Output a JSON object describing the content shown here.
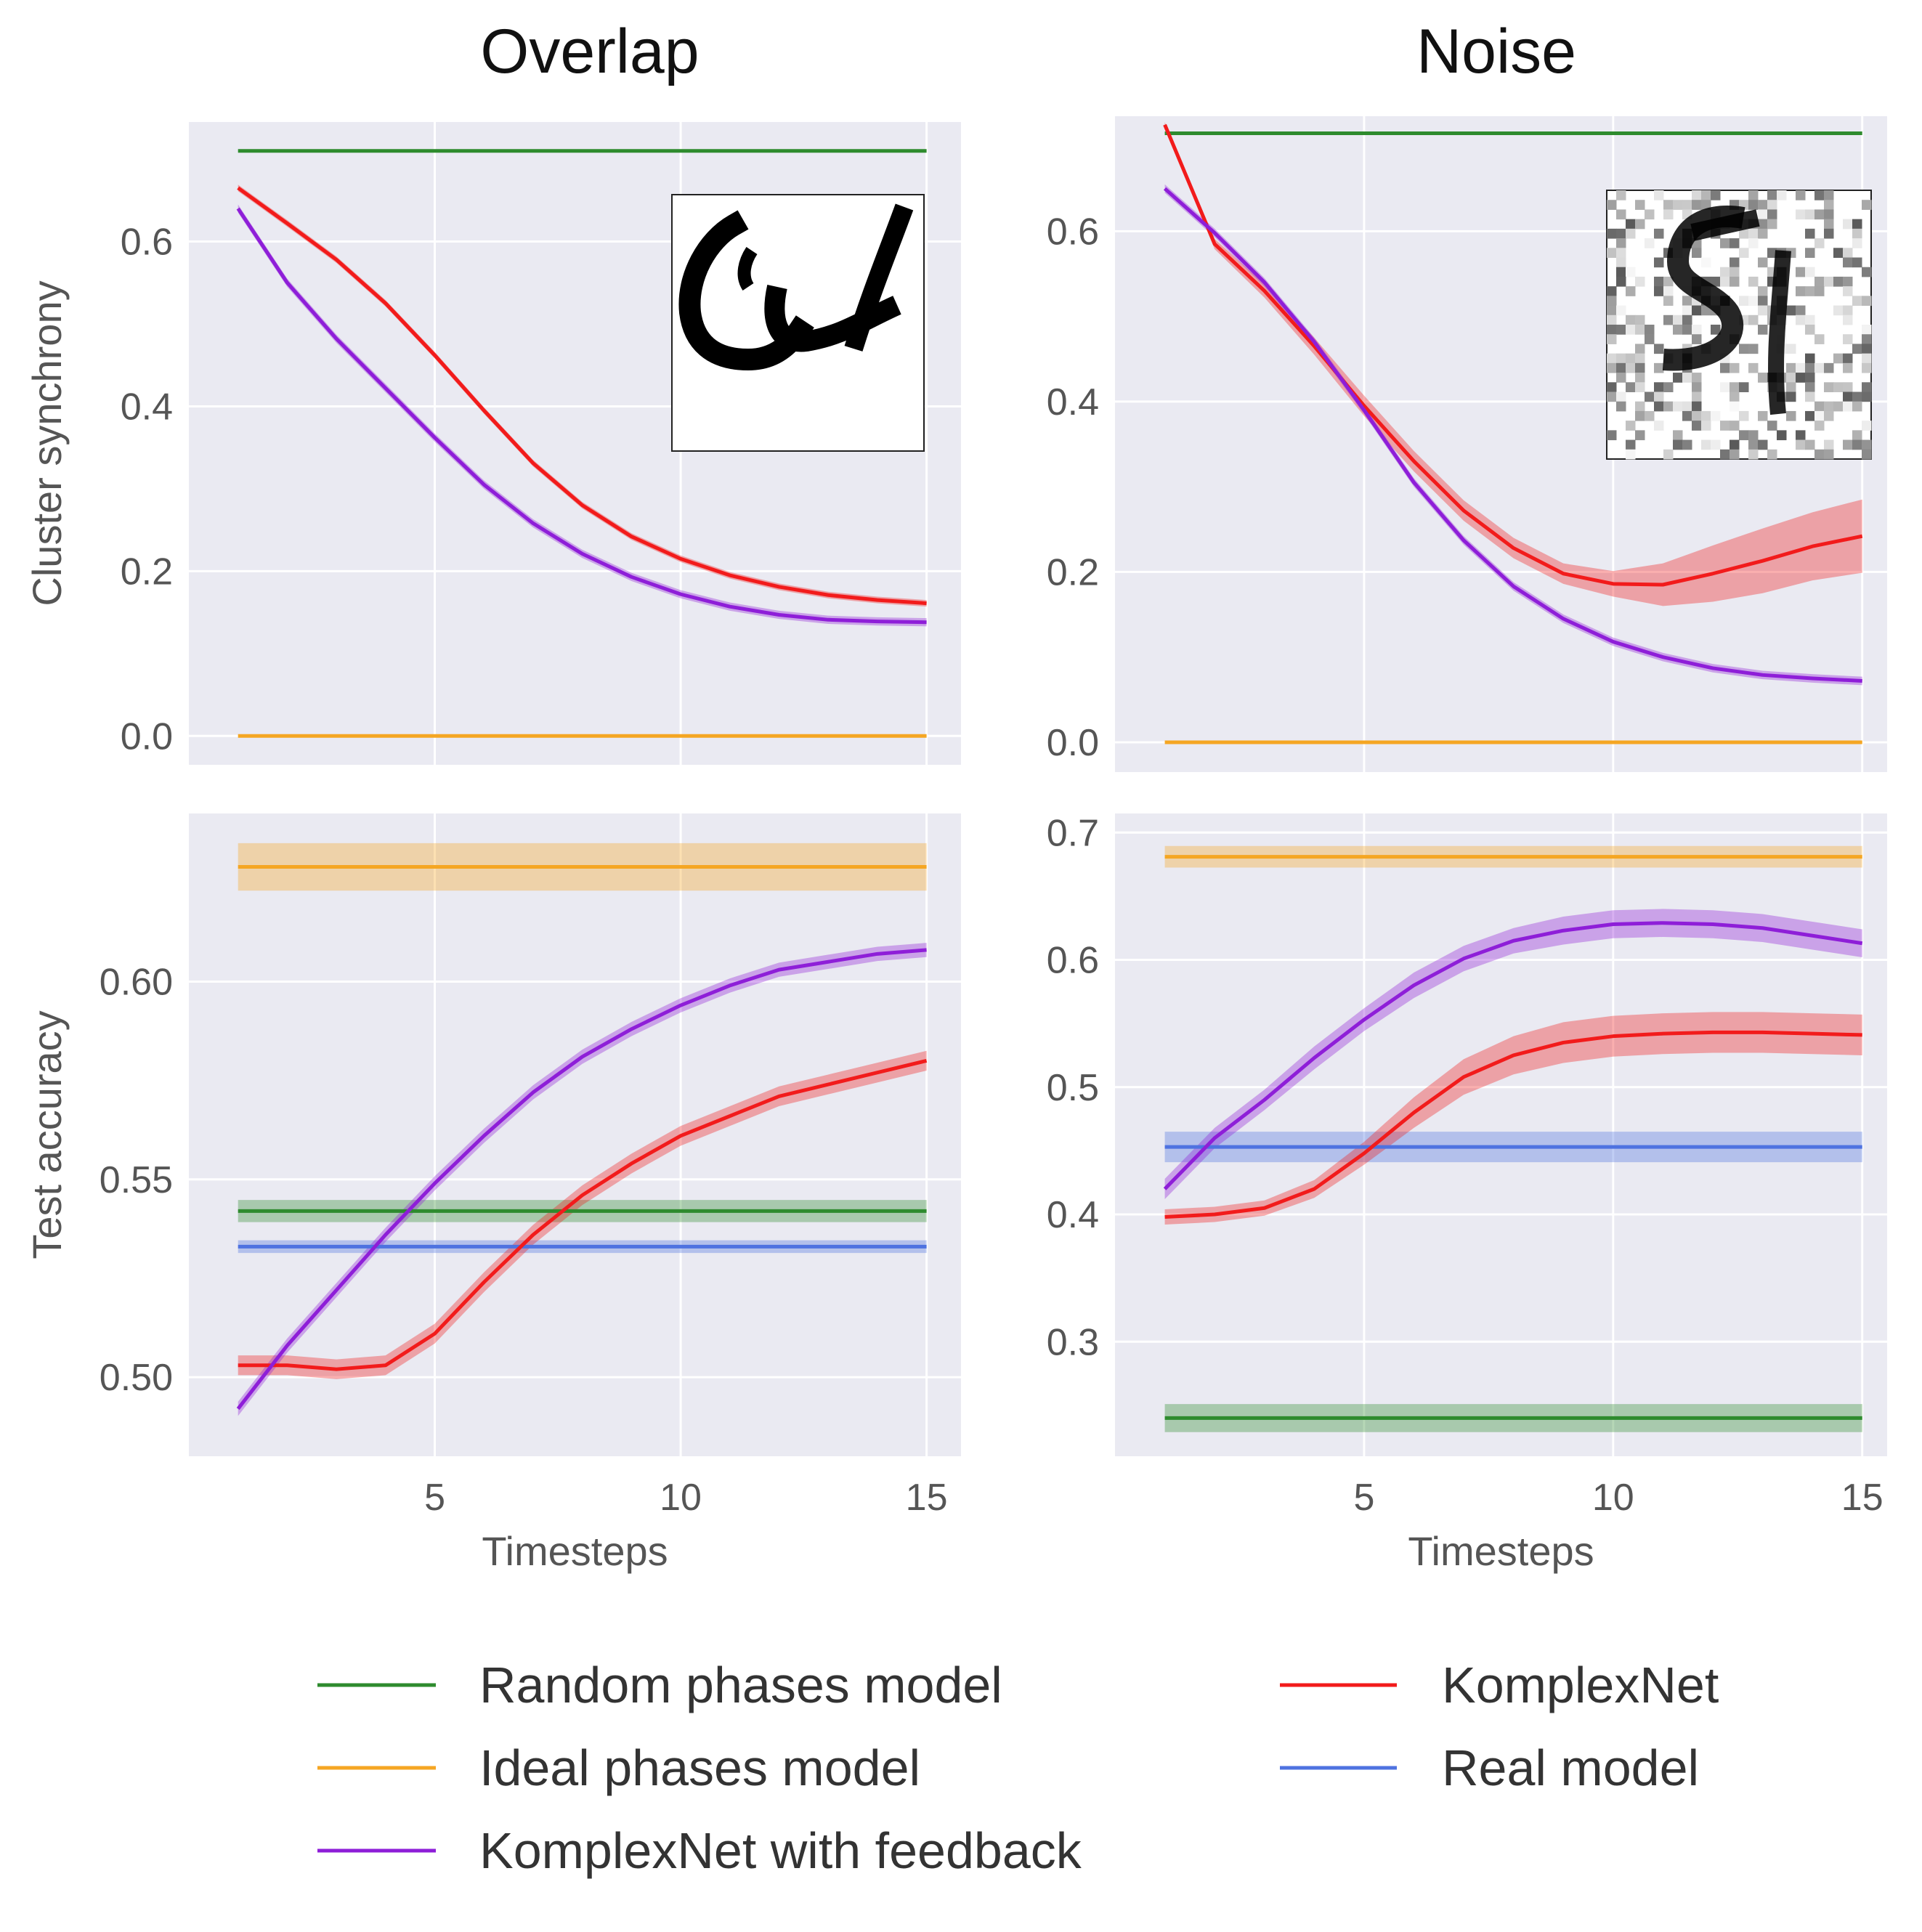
{
  "legend": [
    {
      "key": "random",
      "label": "Random phases model",
      "color": "#2E8B2E"
    },
    {
      "key": "ideal",
      "label": "Ideal phases model",
      "color": "#F5A623"
    },
    {
      "key": "feedback",
      "label": "KomplexNet with feedback",
      "color": "#8E1ED8"
    },
    {
      "key": "komplex",
      "label": "KomplexNet",
      "color": "#F21B1B"
    },
    {
      "key": "real",
      "label": "Real model",
      "color": "#4E72E0"
    }
  ],
  "chart_data": [
    {
      "id": "overlap-sync",
      "type": "line",
      "column_title": "Overlap",
      "ylabel": "Cluster synchrony",
      "xlabel": "",
      "xlim": [
        0,
        15.7
      ],
      "ylim": [
        -0.035,
        0.745
      ],
      "xticks": [
        5,
        10,
        15
      ],
      "xtick_labels": [
        "",
        "",
        ""
      ],
      "yticks": [
        0.0,
        0.2,
        0.4,
        0.6
      ],
      "ytick_labels": [
        "0.0",
        "0.2",
        "0.4",
        "0.6"
      ],
      "grid": true,
      "inset": "overlap-digits",
      "series": [
        {
          "key": "random",
          "x": [
            1,
            15
          ],
          "y": [
            0.71,
            0.71
          ],
          "band": 0.0
        },
        {
          "key": "ideal",
          "x": [
            1,
            15
          ],
          "y": [
            0.0,
            0.0
          ],
          "band": 0.0
        },
        {
          "key": "komplex",
          "x": [
            1,
            2,
            3,
            4,
            5,
            6,
            7,
            8,
            9,
            10,
            11,
            12,
            13,
            14,
            15
          ],
          "y": [
            0.665,
            0.622,
            0.578,
            0.525,
            0.462,
            0.395,
            0.331,
            0.28,
            0.242,
            0.215,
            0.195,
            0.181,
            0.171,
            0.165,
            0.161
          ],
          "band": 0.004
        },
        {
          "key": "feedback",
          "x": [
            1,
            2,
            3,
            4,
            5,
            6,
            7,
            8,
            9,
            10,
            11,
            12,
            13,
            14,
            15
          ],
          "y": [
            0.64,
            0.55,
            0.482,
            0.422,
            0.362,
            0.305,
            0.258,
            0.221,
            0.193,
            0.172,
            0.157,
            0.147,
            0.141,
            0.139,
            0.138
          ],
          "band": 0.005
        }
      ]
    },
    {
      "id": "noise-sync",
      "type": "line",
      "column_title": "Noise",
      "ylabel": "",
      "xlabel": "",
      "xlim": [
        0,
        15.5
      ],
      "ylim": [
        -0.035,
        0.735
      ],
      "xticks": [
        5,
        10,
        15
      ],
      "xtick_labels": [
        "",
        "",
        ""
      ],
      "yticks": [
        0.0,
        0.2,
        0.4,
        0.6
      ],
      "ytick_labels": [
        "0.0",
        "0.2",
        "0.4",
        "0.6"
      ],
      "grid": true,
      "inset": "noise-digits",
      "series": [
        {
          "key": "random",
          "x": [
            1,
            15
          ],
          "y": [
            0.715,
            0.715
          ],
          "band": 0.0
        },
        {
          "key": "ideal",
          "x": [
            1,
            15
          ],
          "y": [
            0.0,
            0.0
          ],
          "band": 0.0
        },
        {
          "key": "komplex",
          "x": [
            1,
            2,
            3,
            4,
            5,
            6,
            7,
            8,
            9,
            10,
            11,
            12,
            13,
            14,
            15
          ],
          "y": [
            0.725,
            0.585,
            0.53,
            0.465,
            0.395,
            0.33,
            0.272,
            0.228,
            0.198,
            0.186,
            0.185,
            0.198,
            0.213,
            0.23,
            0.242
          ],
          "band": [
            0.003,
            0.006,
            0.008,
            0.01,
            0.012,
            0.012,
            0.012,
            0.012,
            0.012,
            0.015,
            0.025,
            0.033,
            0.038,
            0.04,
            0.043
          ]
        },
        {
          "key": "feedback",
          "x": [
            1,
            2,
            3,
            4,
            5,
            6,
            7,
            8,
            9,
            10,
            11,
            12,
            13,
            14,
            15
          ],
          "y": [
            0.65,
            0.598,
            0.54,
            0.47,
            0.39,
            0.305,
            0.237,
            0.183,
            0.145,
            0.118,
            0.1,
            0.087,
            0.079,
            0.075,
            0.072
          ],
          "band": 0.005
        }
      ]
    },
    {
      "id": "overlap-acc",
      "type": "line",
      "column_title": "",
      "ylabel": "Test accuracy",
      "xlabel": "Timesteps",
      "xlim": [
        0,
        15.7
      ],
      "ylim": [
        0.48,
        0.6425
      ],
      "xticks": [
        5,
        10,
        15
      ],
      "xtick_labels": [
        "5",
        "10",
        "15"
      ],
      "yticks": [
        0.5,
        0.55,
        0.6
      ],
      "ytick_labels": [
        "0.50",
        "0.55",
        "0.60"
      ],
      "grid": true,
      "series": [
        {
          "key": "ideal",
          "x": [
            1,
            15
          ],
          "y": [
            0.629,
            0.629
          ],
          "band": 0.006
        },
        {
          "key": "random",
          "x": [
            1,
            15
          ],
          "y": [
            0.542,
            0.542
          ],
          "band": 0.0028
        },
        {
          "key": "real",
          "x": [
            1,
            15
          ],
          "y": [
            0.533,
            0.533
          ],
          "band": 0.0016
        },
        {
          "key": "komplex",
          "x": [
            1,
            2,
            3,
            4,
            5,
            6,
            7,
            8,
            9,
            10,
            11,
            12,
            13,
            14,
            15
          ],
          "y": [
            0.503,
            0.503,
            0.502,
            0.503,
            0.511,
            0.524,
            0.536,
            0.546,
            0.554,
            0.561,
            0.566,
            0.571,
            0.574,
            0.577,
            0.58
          ],
          "band": 0.0025
        },
        {
          "key": "feedback",
          "x": [
            1,
            2,
            3,
            4,
            5,
            6,
            7,
            8,
            9,
            10,
            11,
            12,
            13,
            14,
            15
          ],
          "y": [
            0.492,
            0.508,
            0.522,
            0.536,
            0.549,
            0.561,
            0.572,
            0.581,
            0.588,
            0.594,
            0.599,
            0.603,
            0.605,
            0.607,
            0.608
          ],
          "band": 0.0018
        }
      ]
    },
    {
      "id": "noise-acc",
      "type": "line",
      "column_title": "",
      "ylabel": "",
      "xlabel": "Timesteps",
      "xlim": [
        0,
        15.5
      ],
      "ylim": [
        0.21,
        0.715
      ],
      "xticks": [
        5,
        10,
        15
      ],
      "xtick_labels": [
        "5",
        "10",
        "15"
      ],
      "yticks": [
        0.3,
        0.4,
        0.5,
        0.6,
        0.7
      ],
      "ytick_labels": [
        "0.3",
        "0.4",
        "0.5",
        "0.6",
        "0.7"
      ],
      "grid": true,
      "series": [
        {
          "key": "ideal",
          "x": [
            1,
            15
          ],
          "y": [
            0.681,
            0.681
          ],
          "band": 0.0085
        },
        {
          "key": "real",
          "x": [
            1,
            15
          ],
          "y": [
            0.453,
            0.453
          ],
          "band": 0.012
        },
        {
          "key": "random",
          "x": [
            1,
            15
          ],
          "y": [
            0.24,
            0.24
          ],
          "band": 0.011
        },
        {
          "key": "komplex",
          "x": [
            1,
            2,
            3,
            4,
            5,
            6,
            7,
            8,
            9,
            10,
            11,
            12,
            13,
            14,
            15
          ],
          "y": [
            0.398,
            0.4,
            0.405,
            0.42,
            0.448,
            0.48,
            0.508,
            0.525,
            0.535,
            0.54,
            0.542,
            0.543,
            0.543,
            0.542,
            0.541
          ],
          "band": [
            0.006,
            0.006,
            0.006,
            0.007,
            0.009,
            0.012,
            0.014,
            0.015,
            0.016,
            0.016,
            0.016,
            0.016,
            0.016,
            0.016,
            0.016
          ]
        },
        {
          "key": "feedback",
          "x": [
            1,
            2,
            3,
            4,
            5,
            6,
            7,
            8,
            9,
            10,
            11,
            12,
            13,
            14,
            15
          ],
          "y": [
            0.42,
            0.46,
            0.49,
            0.523,
            0.553,
            0.58,
            0.601,
            0.615,
            0.623,
            0.628,
            0.629,
            0.628,
            0.625,
            0.619,
            0.613
          ],
          "band": [
            0.008,
            0.008,
            0.008,
            0.009,
            0.009,
            0.01,
            0.01,
            0.01,
            0.011,
            0.011,
            0.011,
            0.011,
            0.011,
            0.011,
            0.011
          ]
        }
      ]
    }
  ]
}
